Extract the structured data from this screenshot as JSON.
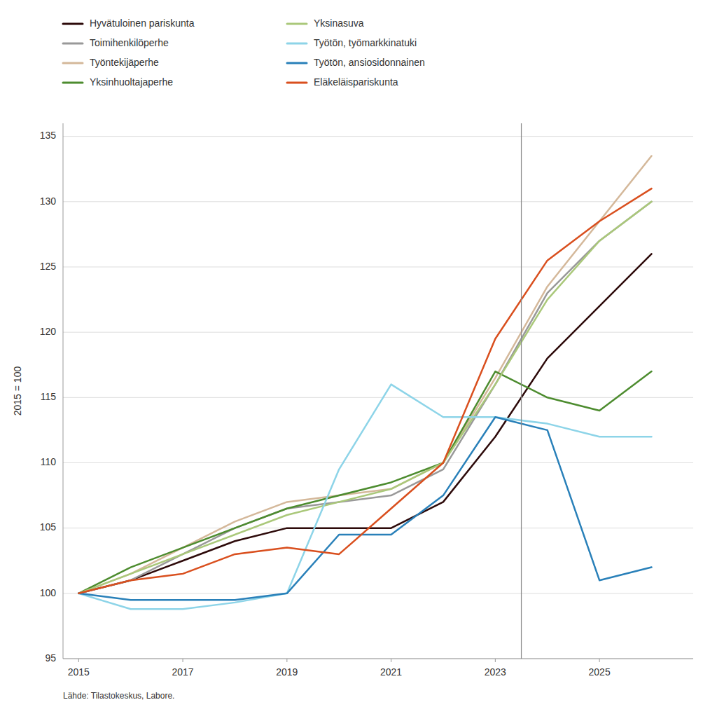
{
  "chart_data": {
    "type": "line",
    "y_label": "2015 = 100",
    "source": "Lähde: Tilastokeskus, Labore.",
    "x": [
      2015,
      2016,
      2017,
      2018,
      2019,
      2020,
      2021,
      2022,
      2023,
      2024,
      2025,
      2026
    ],
    "xlim": [
      2014.7,
      2026.8
    ],
    "xticks": [
      2015,
      2017,
      2019,
      2021,
      2023,
      2025
    ],
    "ylim": [
      95,
      136
    ],
    "yticks": [
      95,
      100,
      105,
      110,
      115,
      120,
      125,
      130,
      135
    ],
    "vline": 2023.5,
    "grid": true,
    "legend": "top",
    "series": [
      {
        "name": "Hyvätuloinen pariskunta",
        "color": "#2d0a0a",
        "values": [
          100,
          101,
          102.5,
          104,
          105,
          105,
          105,
          107,
          112,
          118,
          122,
          126
        ]
      },
      {
        "name": "Toimihenkilöperhe",
        "color": "#999999",
        "values": [
          100,
          101,
          103,
          105,
          106.5,
          107,
          107.5,
          109.5,
          116,
          123,
          127,
          130
        ]
      },
      {
        "name": "Työntekijäperhe",
        "color": "#d4b89a",
        "values": [
          100,
          101.5,
          103.5,
          105.5,
          107,
          107.5,
          108,
          110,
          116.5,
          123.5,
          128.5,
          133.5
        ]
      },
      {
        "name": "Yksinhuoltajaperhe",
        "color": "#4d8c2f",
        "values": [
          100,
          102,
          103.5,
          105,
          106.5,
          107.5,
          108.5,
          110,
          117,
          115,
          114,
          117
        ]
      },
      {
        "name": "Yksinasuva",
        "color": "#aac87a",
        "values": [
          100,
          101.5,
          103,
          104.5,
          106,
          107,
          108,
          110,
          116,
          122.5,
          127,
          130
        ]
      },
      {
        "name": "Työtön, työmarkkinatuki",
        "color": "#8dd4e8",
        "values": [
          100,
          98.8,
          98.8,
          99.3,
          100,
          109.5,
          116,
          113.5,
          113.5,
          113,
          112,
          112
        ]
      },
      {
        "name": "Työtön, ansiosidonnainen",
        "color": "#2980b9",
        "values": [
          100,
          99.5,
          99.5,
          99.5,
          100,
          104.5,
          104.5,
          107.5,
          113.5,
          112.5,
          101,
          102
        ]
      },
      {
        "name": "Eläkeläispariskunta",
        "color": "#d94f1e",
        "values": [
          100,
          101,
          101.5,
          103,
          103.5,
          103,
          106.5,
          110,
          119.5,
          125.5,
          128.5,
          131
        ]
      }
    ]
  }
}
